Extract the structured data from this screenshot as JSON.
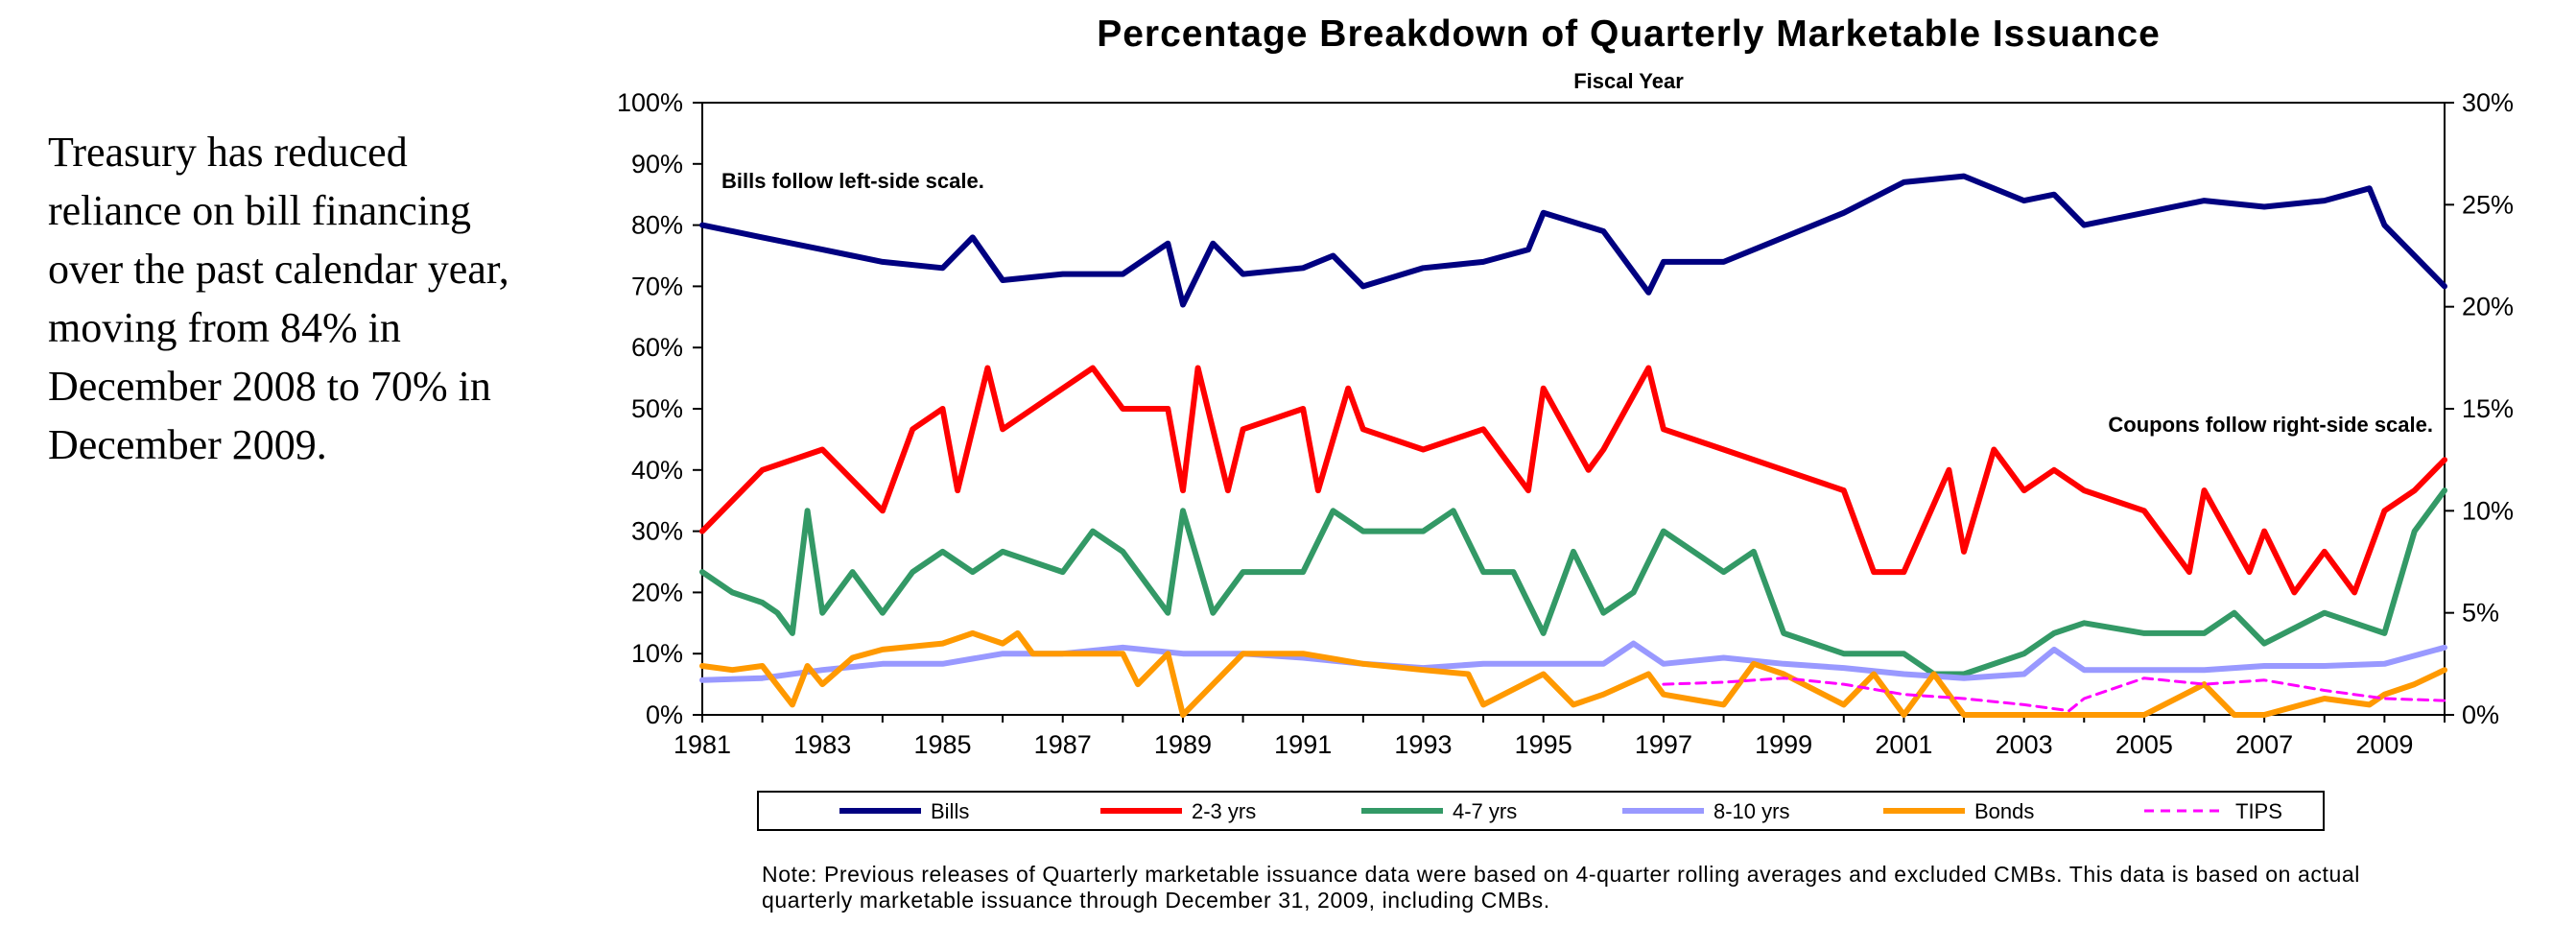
{
  "side_text": "Treasury has reduced reliance on bill financing over the past calendar year, moving from 84% in December 2008 to 70% in December 2009.",
  "footnote": "Note:  Previous releases of Quarterly marketable issuance data were based on 4-quarter rolling averages and excluded CMBs.  This data is based on actual quarterly marketable issuance through December 31, 2009, including CMBs.",
  "chart_data": {
    "type": "line",
    "title": "Percentage Breakdown of Quarterly Marketable Issuance",
    "subtitle": "Fiscal Year",
    "x_range": [
      1981,
      2010
    ],
    "x_ticks": [
      "1981",
      "1983",
      "1985",
      "1987",
      "1989",
      "1991",
      "1993",
      "1995",
      "1997",
      "1999",
      "2001",
      "2003",
      "2005",
      "2007",
      "2009"
    ],
    "ylim_left": [
      0,
      100
    ],
    "ylim_right": [
      0,
      30
    ],
    "y_ticks_left": [
      "0%",
      "10%",
      "20%",
      "30%",
      "40%",
      "50%",
      "60%",
      "70%",
      "80%",
      "90%",
      "100%"
    ],
    "y_ticks_right": [
      "0%",
      "5%",
      "10%",
      "15%",
      "20%",
      "25%",
      "30%"
    ],
    "grid": false,
    "legend_position": "bottom",
    "annotations": {
      "left": "Bills follow left-side scale.",
      "right": "Coupons follow right-side scale."
    },
    "series": [
      {
        "name": "Bills",
        "axis": "left",
        "color": "#000080",
        "dash": false,
        "x": [
          1981,
          1982,
          1983,
          1983.5,
          1984,
          1985,
          1985.5,
          1986,
          1987,
          1988,
          1988.75,
          1989,
          1989.5,
          1990,
          1991,
          1991.5,
          1992,
          1993,
          1994,
          1994.75,
          1995,
          1996,
          1996.75,
          1997,
          1998,
          1999,
          2000,
          2001,
          2002,
          2003,
          2003.5,
          2004,
          2005,
          2006,
          2007,
          2008,
          2008.75,
          2009,
          2009.5,
          2010
        ],
        "y": [
          80,
          78,
          76,
          75,
          74,
          73,
          78,
          71,
          72,
          72,
          77,
          67,
          77,
          72,
          73,
          75,
          70,
          73,
          74,
          76,
          82,
          79,
          69,
          74,
          74,
          78,
          82,
          87,
          88,
          84,
          85,
          80,
          82,
          84,
          83,
          84,
          86,
          80,
          75,
          70
        ]
      },
      {
        "name": "2-3 yrs",
        "axis": "right",
        "color": "#ff0000",
        "dash": false,
        "x": [
          1981,
          1982,
          1983,
          1984,
          1984.5,
          1985,
          1985.25,
          1985.75,
          1986,
          1987,
          1987.5,
          1988,
          1988.75,
          1989,
          1989.25,
          1989.75,
          1990,
          1991,
          1991.25,
          1991.75,
          1992,
          1993,
          1994,
          1994.75,
          1995,
          1995.75,
          1996,
          1996.75,
          1997,
          1998,
          1999,
          2000,
          2000.5,
          2001,
          2001.75,
          2002,
          2002.5,
          2003,
          2003.5,
          2004,
          2005,
          2005.75,
          2006,
          2006.75,
          2007,
          2007.5,
          2008,
          2008.5,
          2009,
          2009.5,
          2010
        ],
        "y": [
          9,
          12,
          13,
          10,
          14,
          15,
          11,
          17,
          14,
          16,
          17,
          15,
          15,
          11,
          17,
          11,
          14,
          15,
          11,
          16,
          14,
          13,
          14,
          11,
          16,
          12,
          13,
          17,
          14,
          13,
          12,
          11,
          7,
          7,
          12,
          8,
          13,
          11,
          12,
          11,
          10,
          7,
          11,
          7,
          9,
          6,
          8,
          6,
          10,
          11,
          12.5
        ]
      },
      {
        "name": "4-7 yrs",
        "axis": "right",
        "color": "#339966",
        "dash": false,
        "x": [
          1981,
          1981.5,
          1982,
          1982.25,
          1982.5,
          1982.75,
          1983,
          1983.5,
          1984,
          1984.5,
          1985,
          1985.5,
          1986,
          1987,
          1987.5,
          1988,
          1988.75,
          1989,
          1989.5,
          1990,
          1991,
          1991.5,
          1992,
          1993,
          1993.5,
          1994,
          1994.5,
          1995,
          1995.5,
          1996,
          1996.5,
          1997,
          1998,
          1998.5,
          1999,
          2000,
          2001,
          2001.5,
          2002,
          2003,
          2003.5,
          2004,
          2005,
          2006,
          2006.5,
          2007,
          2008,
          2009,
          2009.5,
          2010
        ],
        "y": [
          7,
          6,
          5.5,
          5,
          4,
          10,
          5,
          7,
          5,
          7,
          8,
          7,
          8,
          7,
          9,
          8,
          5,
          10,
          5,
          7,
          7,
          10,
          9,
          9,
          10,
          7,
          7,
          4,
          8,
          5,
          6,
          9,
          7,
          8,
          4,
          3,
          3,
          2,
          2,
          3,
          4,
          4.5,
          4,
          4,
          5,
          3.5,
          5,
          4,
          9,
          11
        ]
      },
      {
        "name": "8-10 yrs",
        "axis": "right",
        "color": "#9999ff",
        "dash": false,
        "x": [
          1981,
          1982,
          1983,
          1984,
          1985,
          1986,
          1987,
          1988,
          1989,
          1990,
          1991,
          1992,
          1993,
          1994,
          1995,
          1996,
          1996.5,
          1997,
          1998,
          1999,
          2000,
          2001,
          2002,
          2003,
          2003.5,
          2004,
          2005,
          2006,
          2007,
          2008,
          2009,
          2010
        ],
        "y": [
          1.7,
          1.8,
          2.2,
          2.5,
          2.5,
          3,
          3,
          3.3,
          3,
          3,
          2.8,
          2.5,
          2.3,
          2.5,
          2.5,
          2.5,
          3.5,
          2.5,
          2.8,
          2.5,
          2.3,
          2,
          1.8,
          2,
          3.2,
          2.2,
          2.2,
          2.2,
          2.4,
          2.4,
          2.5,
          3.3
        ]
      },
      {
        "name": "Bonds",
        "axis": "right",
        "color": "#ff9900",
        "dash": false,
        "x": [
          1981,
          1981.5,
          1982,
          1982.5,
          1982.75,
          1983,
          1983.5,
          1984,
          1985,
          1985.5,
          1986,
          1986.25,
          1986.5,
          1987,
          1988,
          1988.25,
          1988.75,
          1989,
          1990,
          1991,
          1992,
          1993,
          1993.75,
          1994,
          1995,
          1995.5,
          1996,
          1996.75,
          1997,
          1998,
          1998.5,
          1999,
          2000,
          2000.5,
          2001,
          2001.5,
          2002,
          2003,
          2004,
          2005,
          2006,
          2006.5,
          2007,
          2008,
          2008.75,
          2009,
          2009.5,
          2010
        ],
        "y": [
          2.4,
          2.2,
          2.4,
          0.5,
          2.4,
          1.5,
          2.8,
          3.2,
          3.5,
          4,
          3.5,
          4,
          3,
          3,
          3,
          1.5,
          3,
          0,
          3,
          3,
          2.5,
          2.2,
          2,
          0.5,
          2,
          0.5,
          1,
          2,
          1,
          0.5,
          2.5,
          2,
          0.5,
          2,
          0,
          2,
          0,
          0,
          0,
          0,
          1.5,
          0,
          0,
          0.8,
          0.5,
          1,
          1.5,
          2.2
        ]
      },
      {
        "name": "TIPS",
        "axis": "right",
        "color": "#ff00ff",
        "dash": true,
        "x": [
          1997,
          1998,
          1999,
          2000,
          2001,
          2002,
          2003,
          2003.75,
          2004,
          2005,
          2006,
          2007,
          2008,
          2009,
          2010
        ],
        "y": [
          1.5,
          1.6,
          1.8,
          1.5,
          1,
          0.8,
          0.5,
          0.2,
          0.8,
          1.8,
          1.5,
          1.7,
          1.2,
          0.8,
          0.7
        ]
      }
    ]
  }
}
